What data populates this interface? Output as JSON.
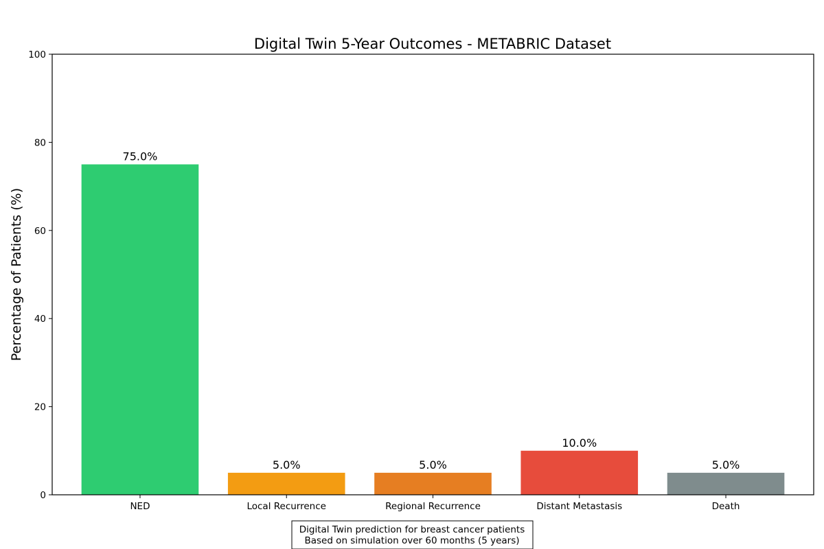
{
  "chart_data": {
    "type": "bar",
    "title": "Digital Twin 5-Year Outcomes - METABRIC Dataset",
    "xlabel": "",
    "ylabel": "Percentage of Patients (%)",
    "categories": [
      "NED",
      "Local Recurrence",
      "Regional Recurrence",
      "Distant Metastasis",
      "Death"
    ],
    "values": [
      75.0,
      5.0,
      5.0,
      10.0,
      5.0
    ],
    "value_labels": [
      "75.0%",
      "5.0%",
      "5.0%",
      "10.0%",
      "5.0%"
    ],
    "colors": [
      "#2ecc71",
      "#f39c12",
      "#e67e22",
      "#e74c3c",
      "#7f8c8d"
    ],
    "ylim": [
      0,
      100
    ],
    "yticks": [
      "0",
      "20",
      "40",
      "60",
      "80",
      "100"
    ],
    "grid": false,
    "legend": "none"
  },
  "footnote": {
    "line1": "Digital Twin prediction for breast cancer patients",
    "line2": "Based on simulation over 60 months (5 years)"
  }
}
